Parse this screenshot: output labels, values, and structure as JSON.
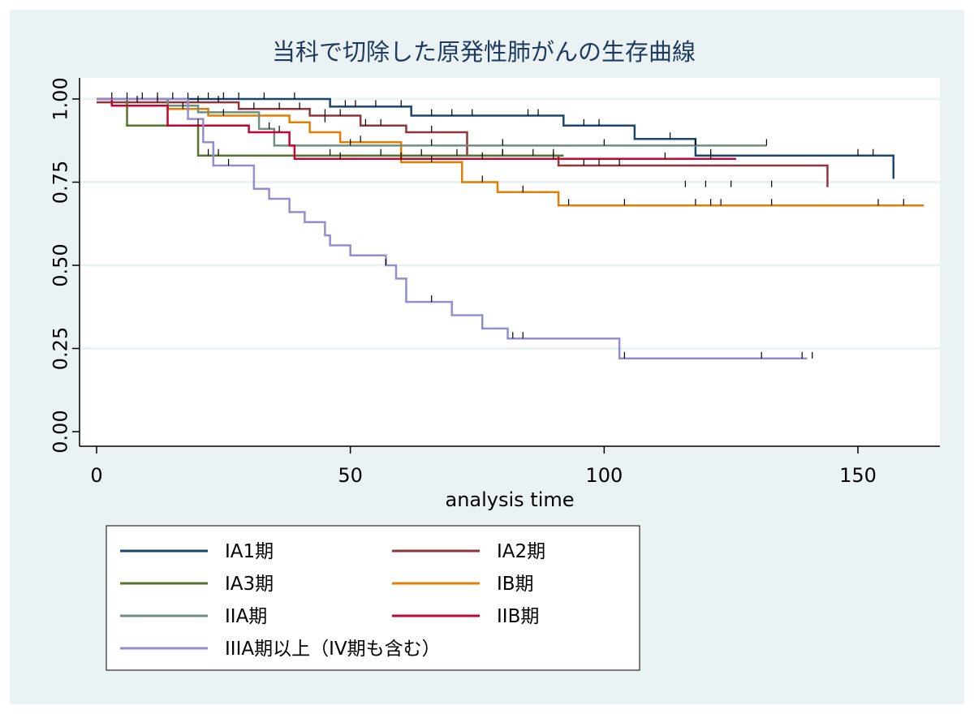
{
  "chart_data": {
    "type": "line",
    "subtype": "kaplan-meier-step",
    "title": "当科で切除した原発性肺がんの生存曲線",
    "xlabel": "analysis time",
    "ylabel": "",
    "xlim": [
      -3,
      166
    ],
    "ylim": [
      -0.04,
      1.065
    ],
    "xticks": [
      0,
      50,
      100,
      150
    ],
    "xtick_labels": [
      "0",
      "50",
      "100",
      "150"
    ],
    "yticks": [
      0,
      0.25,
      0.5,
      0.75,
      1.0
    ],
    "ytick_labels": [
      "0.00",
      "0.25",
      "0.50",
      "0.75",
      "1.00"
    ],
    "grid": "horizontal",
    "legend_position": "bottom",
    "series": [
      {
        "name": "IA1期",
        "color": "#1a476f",
        "steps": [
          [
            0,
            1.0
          ],
          [
            46,
            0.977
          ],
          [
            62,
            0.95
          ],
          [
            92,
            0.92
          ],
          [
            106,
            0.88
          ],
          [
            118,
            0.83
          ],
          [
            157,
            0.76
          ]
        ],
        "censors": [
          [
            3,
            1.0
          ],
          [
            6,
            1.0
          ],
          [
            9,
            1.0
          ],
          [
            12,
            1.0
          ],
          [
            15,
            1.0
          ],
          [
            18,
            1.0
          ],
          [
            22,
            1.0
          ],
          [
            25,
            1.0
          ],
          [
            28,
            1.0
          ],
          [
            33,
            1.0
          ],
          [
            39,
            1.0
          ],
          [
            49,
            0.977
          ],
          [
            51,
            0.977
          ],
          [
            55,
            0.977
          ],
          [
            60,
            0.977
          ],
          [
            66,
            0.95
          ],
          [
            70,
            0.95
          ],
          [
            74,
            0.95
          ],
          [
            85,
            0.95
          ],
          [
            87,
            0.95
          ],
          [
            96,
            0.92
          ],
          [
            99,
            0.92
          ],
          [
            113,
            0.88
          ],
          [
            121,
            0.83
          ],
          [
            150,
            0.83
          ],
          [
            153,
            0.83
          ]
        ]
      },
      {
        "name": "IA2期",
        "color": "#90353b",
        "steps": [
          [
            0,
            0.99
          ],
          [
            28,
            0.97
          ],
          [
            42,
            0.95
          ],
          [
            52,
            0.92
          ],
          [
            61,
            0.9
          ],
          [
            73,
            0.83
          ],
          [
            91,
            0.8
          ],
          [
            144,
            0.735
          ]
        ],
        "censors": [
          [
            8,
            0.99
          ],
          [
            12,
            0.99
          ],
          [
            20,
            0.99
          ],
          [
            24,
            0.99
          ],
          [
            31,
            0.97
          ],
          [
            36,
            0.97
          ],
          [
            40,
            0.97
          ],
          [
            45,
            0.95
          ],
          [
            48,
            0.95
          ],
          [
            53,
            0.92
          ],
          [
            56,
            0.92
          ],
          [
            66,
            0.9
          ],
          [
            80,
            0.83
          ],
          [
            96,
            0.8
          ],
          [
            99,
            0.8
          ],
          [
            103,
            0.8
          ],
          [
            116,
            0.735
          ],
          [
            120,
            0.735
          ],
          [
            125,
            0.735
          ],
          [
            133,
            0.735
          ]
        ]
      },
      {
        "name": "IA3期",
        "color": "#55752f",
        "steps": [
          [
            0,
            1.0
          ],
          [
            6,
            0.92
          ],
          [
            20,
            0.83
          ],
          [
            92,
            0.83
          ]
        ],
        "censors": [
          [
            22,
            0.83
          ],
          [
            24,
            0.83
          ],
          [
            46,
            0.83
          ],
          [
            56,
            0.83
          ],
          [
            64,
            0.83
          ],
          [
            71,
            0.83
          ],
          [
            80,
            0.83
          ],
          [
            86,
            0.83
          ],
          [
            90,
            0.83
          ]
        ]
      },
      {
        "name": "IB期",
        "color": "#e37e00",
        "steps": [
          [
            0,
            1.0
          ],
          [
            14,
            0.97
          ],
          [
            22,
            0.95
          ],
          [
            38,
            0.93
          ],
          [
            42,
            0.9
          ],
          [
            48,
            0.87
          ],
          [
            60,
            0.81
          ],
          [
            72,
            0.75
          ],
          [
            79,
            0.72
          ],
          [
            91,
            0.68
          ],
          [
            163,
            0.68
          ]
        ],
        "censors": [
          [
            17,
            0.97
          ],
          [
            25,
            0.95
          ],
          [
            45,
            0.93
          ],
          [
            52,
            0.87
          ],
          [
            66,
            0.81
          ],
          [
            76,
            0.75
          ],
          [
            84,
            0.72
          ],
          [
            93,
            0.68
          ],
          [
            104,
            0.68
          ],
          [
            118,
            0.68
          ],
          [
            121,
            0.68
          ],
          [
            123,
            0.68
          ],
          [
            133,
            0.68
          ],
          [
            154,
            0.68
          ],
          [
            159,
            0.68
          ]
        ]
      },
      {
        "name": "IIA期",
        "color": "#6e8e84",
        "steps": [
          [
            0,
            1.0
          ],
          [
            14,
            0.98
          ],
          [
            20,
            0.96
          ],
          [
            32,
            0.91
          ],
          [
            35,
            0.86
          ],
          [
            132,
            0.86
          ]
        ],
        "censors": [
          [
            34,
            0.91
          ],
          [
            50,
            0.86
          ],
          [
            66,
            0.86
          ],
          [
            80,
            0.86
          ],
          [
            100,
            0.86
          ],
          [
            118,
            0.86
          ],
          [
            132,
            0.86
          ]
        ]
      },
      {
        "name": "IIB期",
        "color": "#c10534",
        "steps": [
          [
            0,
            1.0
          ],
          [
            3,
            0.98
          ],
          [
            14,
            0.92
          ],
          [
            30,
            0.9
          ],
          [
            38,
            0.86
          ],
          [
            39,
            0.82
          ],
          [
            126,
            0.82
          ]
        ],
        "censors": [
          [
            20,
            0.92
          ],
          [
            36,
            0.9
          ],
          [
            48,
            0.82
          ],
          [
            60,
            0.82
          ],
          [
            76,
            0.82
          ],
          [
            90,
            0.82
          ],
          [
            112,
            0.82
          ],
          [
            121,
            0.82
          ]
        ]
      },
      {
        "name": "IIIA期以上（IV期も含む）",
        "color": "#938dd2",
        "steps": [
          [
            0,
            1.0
          ],
          [
            18,
            0.94
          ],
          [
            21,
            0.87
          ],
          [
            23,
            0.8
          ],
          [
            31,
            0.73
          ],
          [
            34,
            0.7
          ],
          [
            38,
            0.66
          ],
          [
            41,
            0.63
          ],
          [
            45,
            0.59
          ],
          [
            46,
            0.56
          ],
          [
            50,
            0.53
          ],
          [
            57,
            0.5
          ],
          [
            59,
            0.46
          ],
          [
            61,
            0.39
          ],
          [
            70,
            0.35
          ],
          [
            76,
            0.31
          ],
          [
            81,
            0.28
          ],
          [
            103,
            0.22
          ],
          [
            140,
            0.22
          ]
        ],
        "censors": [
          [
            26,
            0.8
          ],
          [
            57,
            0.5
          ],
          [
            66,
            0.39
          ],
          [
            82,
            0.28
          ],
          [
            84,
            0.28
          ],
          [
            104,
            0.22
          ],
          [
            131,
            0.22
          ],
          [
            139,
            0.22
          ],
          [
            141,
            0.22
          ]
        ]
      }
    ]
  }
}
